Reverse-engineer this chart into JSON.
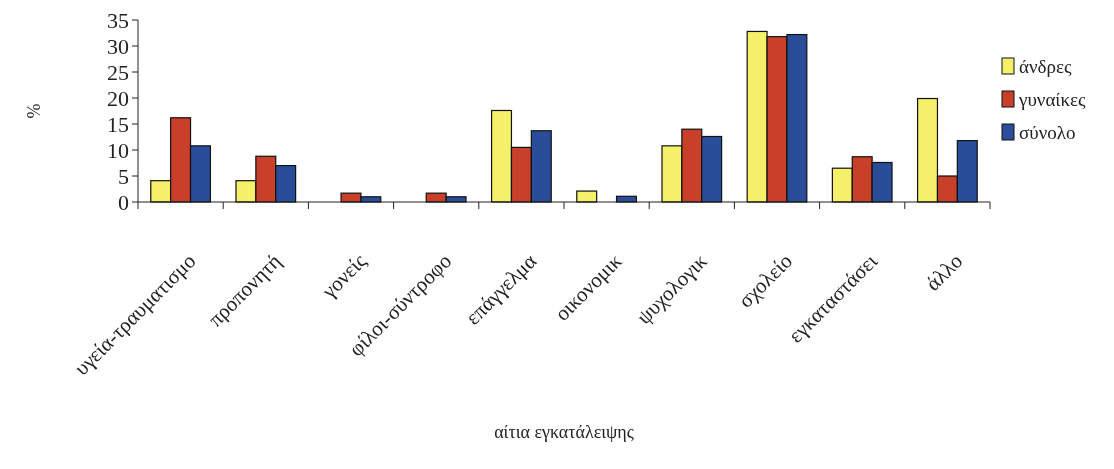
{
  "chart_data": {
    "type": "bar",
    "xlabel": "αίτια εγκατάλειψης",
    "ylabel": "%",
    "categories": [
      "υγεία-τραυματισμο",
      "προπονητή",
      "γονείς",
      "φίλοι-σύντροφο",
      "επάγγελμα",
      "οικονομικ",
      "ψυχολογικ",
      "σχολείο",
      "εγκαταστάσει",
      "άλλο"
    ],
    "series": [
      {
        "name": "άνδρες",
        "color": "#f5f06a",
        "values": [
          4.1,
          4.1,
          0,
          0,
          17.6,
          2.1,
          10.8,
          32.8,
          6.5,
          19.9
        ]
      },
      {
        "name": "γυναίκες",
        "color": "#c8402a",
        "values": [
          16.2,
          8.8,
          1.7,
          1.7,
          10.5,
          0,
          14.0,
          31.8,
          8.7,
          5.0
        ]
      },
      {
        "name": "σύνολο",
        "color": "#2a4d9a",
        "values": [
          10.8,
          7.0,
          1.0,
          1.0,
          13.7,
          1.1,
          12.6,
          32.2,
          7.6,
          11.8
        ]
      }
    ],
    "ylim": [
      0,
      35
    ],
    "yticks": [
      0,
      5,
      10,
      15,
      20,
      25,
      30,
      35
    ],
    "grid": false,
    "legend": "right"
  }
}
